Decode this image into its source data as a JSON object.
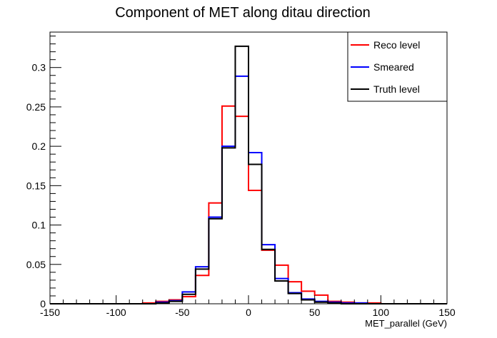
{
  "chart_data": {
    "type": "histogram",
    "title": "Component of MET along ditau direction",
    "xlabel": "MET_parallel (GeV)",
    "ylabel": "",
    "xlim": [
      -150,
      150
    ],
    "ylim": [
      0,
      0.345
    ],
    "bin_edges": [
      -150,
      -140,
      -130,
      -120,
      -110,
      -100,
      -90,
      -80,
      -70,
      -60,
      -50,
      -40,
      -30,
      -20,
      -10,
      0,
      10,
      20,
      30,
      40,
      50,
      60,
      70,
      80,
      90,
      100,
      110,
      120,
      130,
      140,
      150
    ],
    "x_ticks": [
      -150,
      -100,
      -50,
      0,
      50,
      100,
      150
    ],
    "x_tick_labels": [
      "-150",
      "-100",
      "-50",
      "0",
      "50",
      "100",
      "150"
    ],
    "y_ticks": [
      0,
      0.05,
      0.1,
      0.15,
      0.2,
      0.25,
      0.3
    ],
    "y_tick_labels": [
      "0",
      "0.05",
      "0.1",
      "0.15",
      "0.2",
      "0.25",
      "0.3"
    ],
    "legend_position": "top-right",
    "series": [
      {
        "name": "Reco level",
        "color": "#ff0000",
        "values": [
          0,
          0,
          0,
          0,
          0,
          0,
          0,
          0.001,
          0.003,
          0.005,
          0.009,
          0.036,
          0.128,
          0.251,
          0.238,
          0.144,
          0.068,
          0.049,
          0.028,
          0.016,
          0.011,
          0.003,
          0.002,
          0.001,
          0.001,
          0,
          0,
          0,
          0,
          0
        ]
      },
      {
        "name": "Smeared",
        "color": "#0000ff",
        "values": [
          0,
          0,
          0,
          0,
          0,
          0,
          0,
          0,
          0.002,
          0.004,
          0.015,
          0.047,
          0.11,
          0.2,
          0.289,
          0.192,
          0.075,
          0.032,
          0.014,
          0.006,
          0.003,
          0.002,
          0.001,
          0.001,
          0,
          0,
          0,
          0,
          0,
          0
        ]
      },
      {
        "name": "Truth level",
        "color": "#000000",
        "values": [
          0,
          0,
          0,
          0,
          0,
          0,
          0,
          0,
          0.001,
          0.003,
          0.012,
          0.044,
          0.108,
          0.198,
          0.327,
          0.177,
          0.069,
          0.029,
          0.013,
          0.005,
          0.002,
          0.001,
          0,
          0,
          0,
          0,
          0,
          0,
          0,
          0
        ]
      }
    ]
  }
}
